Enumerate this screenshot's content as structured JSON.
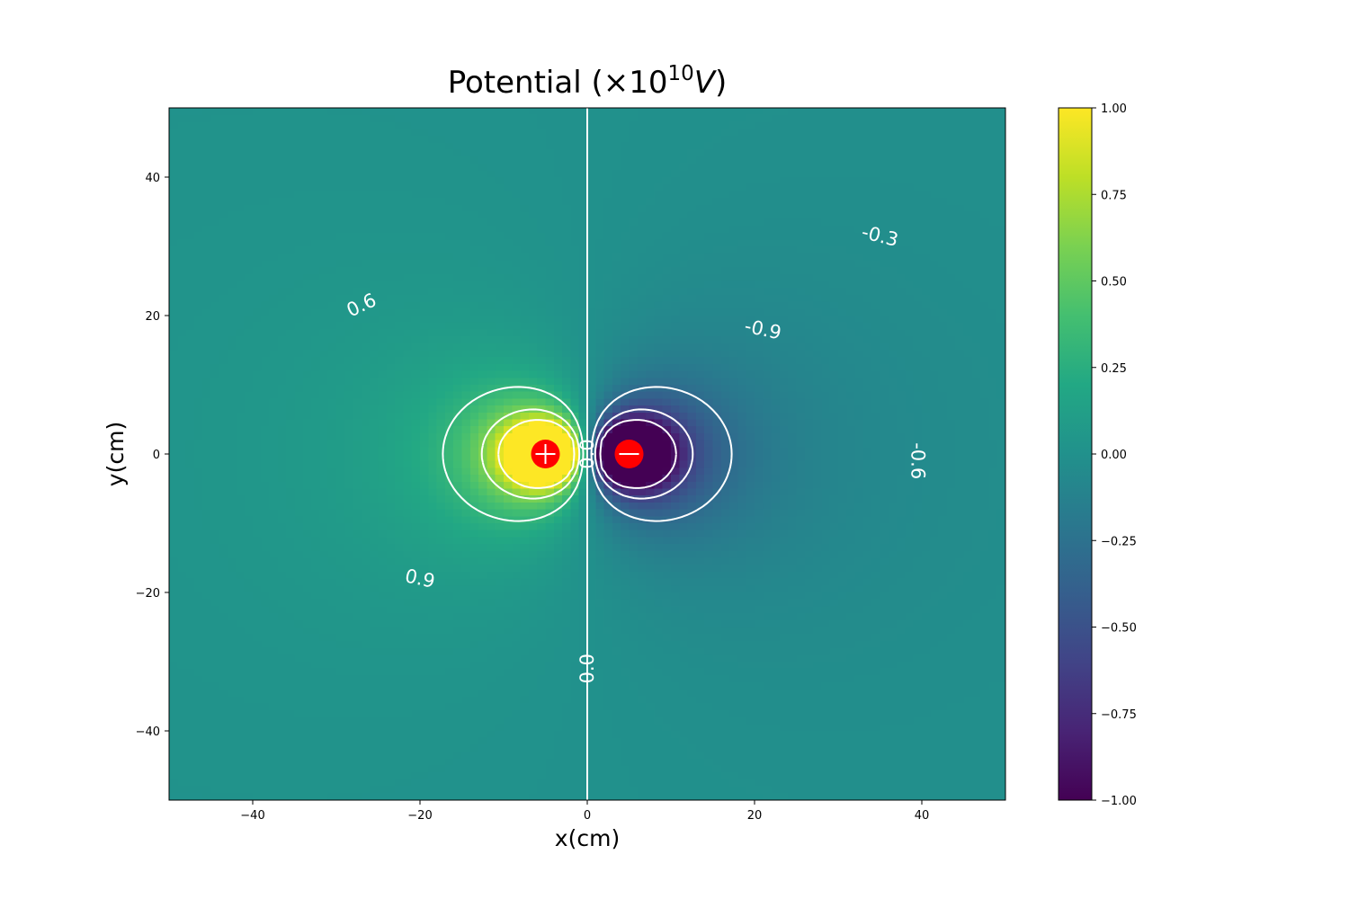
{
  "chart_data": {
    "type": "heatmap",
    "title": {
      "main": "Potential (×10",
      "exponent": "10",
      "unit": "V",
      "close": ")"
    },
    "xlabel": "x(cm)",
    "ylabel": "y(cm)",
    "xlim": [
      -50,
      50
    ],
    "ylim": [
      -50,
      50
    ],
    "x_ticks": [
      -40,
      -20,
      0,
      20,
      40
    ],
    "y_ticks": [
      -40,
      -20,
      0,
      20,
      40
    ],
    "x_tick_labels": [
      "−40",
      "−20",
      "0",
      "20",
      "40"
    ],
    "y_tick_labels": [
      "−40",
      "−20",
      "0",
      "20",
      "40"
    ],
    "colormap": "viridis",
    "color_range": [
      -1.0,
      1.0
    ],
    "clipped": true,
    "colorbar": {
      "ticks": [
        1.0,
        0.75,
        0.5,
        0.25,
        0.0,
        -0.25,
        -0.5,
        -0.75,
        -1.0
      ],
      "tick_labels": [
        "1.00",
        "0.75",
        "0.50",
        "0.25",
        "0.00",
        "−0.25",
        "−0.50",
        "−0.75",
        "−1.00"
      ]
    },
    "charges": [
      {
        "sign": "positive",
        "x": -5,
        "y": 0,
        "color": "#ff0000"
      },
      {
        "sign": "negative",
        "x": 5,
        "y": 0,
        "color": "#ff0000"
      }
    ],
    "contour_color": "#ffffff",
    "contour_levels": [
      -0.9,
      -0.6,
      -0.3,
      0.0,
      0.3,
      0.6,
      0.9
    ],
    "contour_labels": [
      {
        "text": "0.6",
        "x": -27,
        "y": 21.5,
        "angle": -25
      },
      {
        "text": "0.9",
        "x": -20,
        "y": -18,
        "angle": 12
      },
      {
        "text": "-0.3",
        "x": 35,
        "y": 31.5,
        "angle": 14
      },
      {
        "text": "-0.9",
        "x": 21,
        "y": 18,
        "angle": 12
      },
      {
        "text": "-0.6",
        "x": 39.5,
        "y": -1,
        "angle": 90
      },
      {
        "text": "0.0",
        "x": 0,
        "y": -31,
        "angle": -90
      },
      {
        "text": "0.0",
        "x": 0,
        "y": 0,
        "angle": -90
      }
    ]
  }
}
